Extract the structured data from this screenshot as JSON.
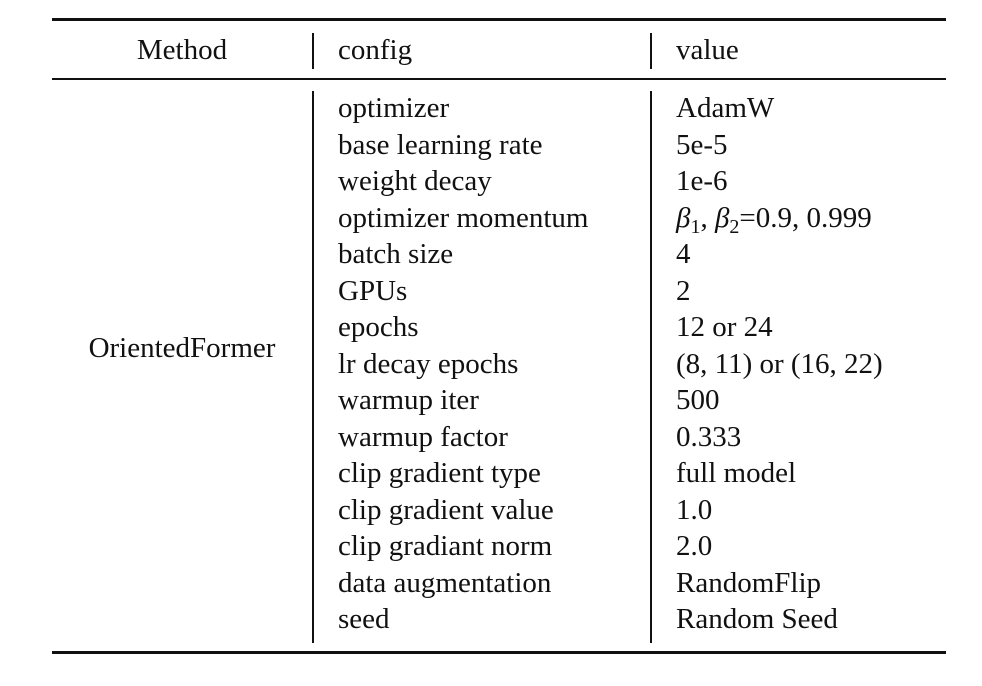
{
  "table": {
    "headers": {
      "method": "Method",
      "config": "config",
      "value": "value"
    },
    "method": "OrientedFormer",
    "rows": [
      {
        "config": "optimizer",
        "value": "AdamW"
      },
      {
        "config": "base learning rate",
        "value": "5e-5"
      },
      {
        "config": "weight decay",
        "value": "1e-6"
      },
      {
        "config": "optimizer momentum",
        "value_parts": {
          "beta": "β",
          "sub1": "1",
          "sep": ", ",
          "sub2": "2",
          "rest": "=0.9, 0.999"
        }
      },
      {
        "config": "batch size",
        "value": "4"
      },
      {
        "config": "GPUs",
        "value": "2"
      },
      {
        "config": "epochs",
        "value": "12 or 24"
      },
      {
        "config": "lr decay epochs",
        "value": "(8, 11) or (16, 22)"
      },
      {
        "config": "warmup iter",
        "value": "500"
      },
      {
        "config": "warmup factor",
        "value": "0.333"
      },
      {
        "config": "clip gradient type",
        "value": "full model"
      },
      {
        "config": "clip gradient value",
        "value": "1.0"
      },
      {
        "config": "clip gradiant norm",
        "value": "2.0"
      },
      {
        "config": "data augmentation",
        "value": "RandomFlip"
      },
      {
        "config": "seed",
        "value": "Random Seed"
      }
    ]
  }
}
